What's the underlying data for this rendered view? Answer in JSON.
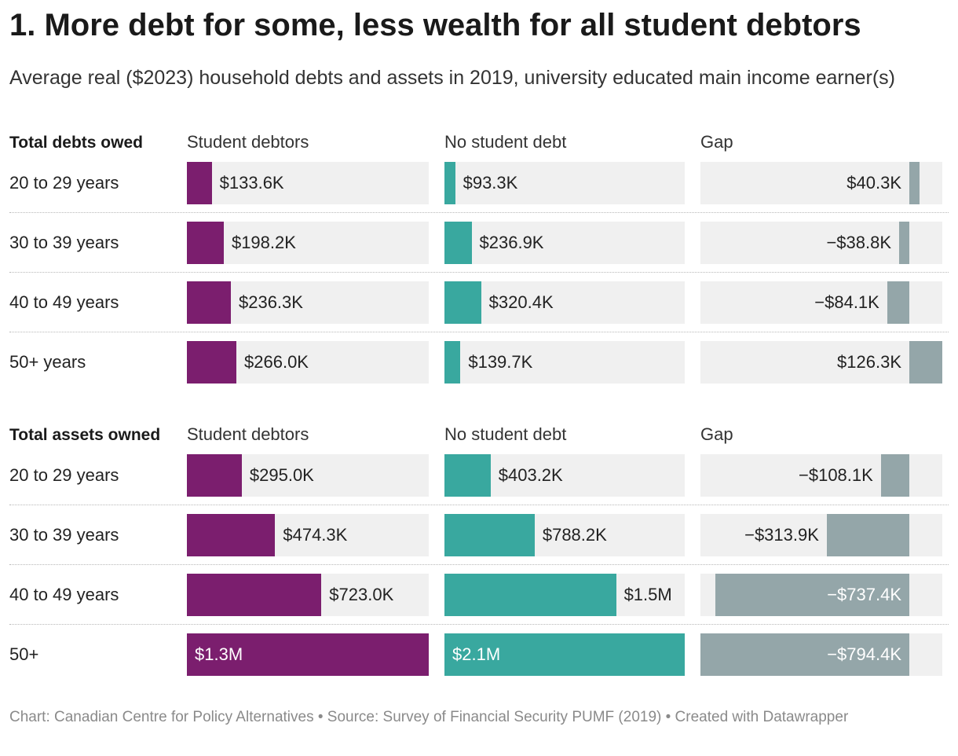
{
  "title": "1. More debt for some, less wealth for all student debtors",
  "subtitle": "Average real ($2023) household debts and assets in 2019, university educated main income earner(s)",
  "footer": "Chart: Canadian Centre for Policy Alternatives • Source: Survey of Financial Security PUMF (2019) • Created with Datawrapper",
  "colors": {
    "student_debtors": "#7b1e6e",
    "no_student_debt": "#39a89f",
    "gap": "#94a6a9",
    "track": "#f0f0f0"
  },
  "chart_data": [
    {
      "type": "bar",
      "section": "Total debts owed",
      "columns": [
        "Student debtors",
        "No student debt",
        "Gap"
      ],
      "categories": [
        "20 to 29 years",
        "30 to 39 years",
        "40 to 49 years",
        "50+ years"
      ],
      "series": [
        {
          "name": "Student debtors",
          "values": [
            133.6,
            198.2,
            236.3,
            266.0
          ],
          "labels": [
            "$133.6K",
            "$198.2K",
            "$236.3K",
            "$266.0K"
          ]
        },
        {
          "name": "No student debt",
          "values": [
            93.3,
            236.9,
            320.4,
            139.7
          ],
          "labels": [
            "$93.3K",
            "$236.9K",
            "$320.4K",
            "$139.7K"
          ]
        },
        {
          "name": "Gap",
          "values": [
            40.3,
            -38.8,
            -84.1,
            126.3
          ],
          "labels": [
            "$40.3K",
            "−$38.8K",
            "−$84.1K",
            "$126.3K"
          ]
        }
      ]
    },
    {
      "type": "bar",
      "section": "Total assets owned",
      "columns": [
        "Student debtors",
        "No student debt",
        "Gap"
      ],
      "categories": [
        "20 to 29 years",
        "30 to 39 years",
        "40 to 49 years",
        "50+"
      ],
      "series": [
        {
          "name": "Student debtors",
          "values": [
            295.0,
            474.3,
            723.0,
            1300
          ],
          "labels": [
            "$295.0K",
            "$474.3K",
            "$723.0K",
            "$1.3M"
          ]
        },
        {
          "name": "No student debt",
          "values": [
            403.2,
            788.2,
            1500,
            2100
          ],
          "labels": [
            "$403.2K",
            "$788.2K",
            "$1.5M",
            "$2.1M"
          ]
        },
        {
          "name": "Gap",
          "values": [
            -108.1,
            -313.9,
            -737.4,
            -794.4
          ],
          "labels": [
            "−$108.1K",
            "−$313.9K",
            "−$737.4K",
            "−$794.4K"
          ]
        }
      ]
    }
  ]
}
